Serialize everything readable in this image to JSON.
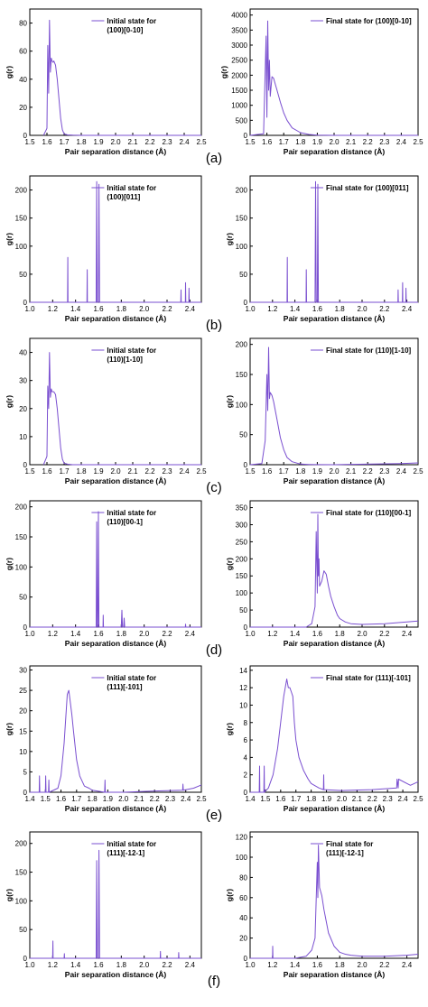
{
  "colors": {
    "series": "#7a4fd0",
    "axis": "#000000",
    "background": "#ffffff"
  },
  "panel_labels": [
    "(a)",
    "(b)",
    "(c)",
    "(d)",
    "(e)",
    "(f)"
  ],
  "chart_data": [
    {
      "panel": "(a)",
      "side": "left",
      "type": "line",
      "legend": "Initial state for (100)[0-10]",
      "xlabel": "Pair separation distance (Å)",
      "ylabel": "g(r)",
      "xlim": [
        1.5,
        2.5
      ],
      "ylim": [
        0,
        90
      ],
      "xticks": [
        "1.5",
        "1.6",
        "1.7",
        "1.8",
        "1.9",
        "2.0",
        "2.1",
        "2.2",
        "2.3",
        "2.4",
        "2.5"
      ],
      "yticks": [
        "0",
        "20",
        "40",
        "60",
        "80"
      ],
      "x": [
        1.58,
        1.6,
        1.605,
        1.61,
        1.615,
        1.62,
        1.625,
        1.63,
        1.635,
        1.64,
        1.65,
        1.66,
        1.67,
        1.68,
        1.69,
        1.7,
        1.72,
        1.75,
        1.8,
        2.0,
        2.3,
        2.5
      ],
      "y": [
        0,
        5,
        64,
        30,
        82,
        45,
        55,
        53,
        52,
        53,
        50,
        40,
        26,
        12,
        4,
        1,
        0.3,
        0.1,
        0,
        0,
        0,
        0
      ]
    },
    {
      "panel": "(a)",
      "side": "right",
      "type": "line",
      "legend": "Final state for (100)[0-10]",
      "xlabel": "Pair separation distance (Å)",
      "ylabel": "g(r)",
      "xlim": [
        1.5,
        2.5
      ],
      "ylim": [
        0,
        4200
      ],
      "xticks": [
        "1.5",
        "1.6",
        "1.7",
        "1.8",
        "1.9",
        "2.0",
        "2.1",
        "2.2",
        "2.3",
        "2.4",
        "2.5"
      ],
      "yticks": [
        "0",
        "500",
        "1000",
        "1500",
        "2000",
        "2500",
        "3000",
        "3500",
        "4000"
      ],
      "x": [
        1.5,
        1.58,
        1.595,
        1.6,
        1.605,
        1.61,
        1.615,
        1.62,
        1.63,
        1.64,
        1.66,
        1.68,
        1.7,
        1.72,
        1.75,
        1.8,
        1.85,
        1.9,
        2.0,
        2.5
      ],
      "y": [
        0,
        50,
        3300,
        600,
        3800,
        1500,
        2500,
        1300,
        1950,
        1900,
        1500,
        1100,
        750,
        500,
        250,
        90,
        30,
        10,
        0,
        0
      ]
    },
    {
      "panel": "(b)",
      "side": "left",
      "type": "line",
      "legend": "Initial state for (100)[011]",
      "xlabel": "Pair separation distance (Å)",
      "ylabel": "g(r)",
      "xlim": [
        1.0,
        2.5
      ],
      "ylim": [
        0,
        225
      ],
      "xticks": [
        "1.0",
        "1.2",
        "1.4",
        "1.6",
        "1.8",
        "2.0",
        "2.2",
        "2.4"
      ],
      "yticks": [
        "0",
        "50",
        "100",
        "150",
        "200"
      ],
      "x": [
        1.0,
        1.33,
        1.332,
        1.334,
        1.5,
        1.502,
        1.504,
        1.58,
        1.585,
        1.59,
        1.6,
        1.605,
        1.61,
        2.32,
        2.322,
        2.324,
        2.36,
        2.362,
        2.364,
        2.39,
        2.392,
        2.394,
        2.5
      ],
      "y": [
        0,
        0,
        80,
        0,
        0,
        58,
        0,
        0,
        215,
        0,
        0,
        210,
        0,
        0,
        22,
        0,
        0,
        35,
        0,
        0,
        25,
        0,
        0
      ]
    },
    {
      "panel": "(b)",
      "side": "right",
      "type": "line",
      "legend": "Final state for (100)[011]",
      "xlabel": "Pair separation distance (Å)",
      "ylabel": "g(r)",
      "xlim": [
        1.0,
        2.5
      ],
      "ylim": [
        0,
        225
      ],
      "xticks": [
        "1.0",
        "1.2",
        "1.4",
        "1.6",
        "1.8",
        "2.0",
        "2.2",
        "2.4"
      ],
      "yticks": [
        "0",
        "50",
        "100",
        "150",
        "200"
      ],
      "x": [
        1.0,
        1.33,
        1.332,
        1.334,
        1.5,
        1.502,
        1.504,
        1.58,
        1.585,
        1.59,
        1.6,
        1.605,
        1.61,
        2.32,
        2.322,
        2.324,
        2.36,
        2.362,
        2.364,
        2.39,
        2.392,
        2.394,
        2.5
      ],
      "y": [
        0,
        0,
        80,
        0,
        0,
        58,
        0,
        0,
        215,
        0,
        0,
        210,
        0,
        0,
        22,
        0,
        0,
        35,
        0,
        0,
        25,
        0,
        0
      ]
    },
    {
      "panel": "(c)",
      "side": "left",
      "type": "line",
      "legend": "Initial state for (110)[1-10]",
      "xlabel": "Pair separation distance (Å)",
      "ylabel": "g(r)",
      "xlim": [
        1.5,
        2.5
      ],
      "ylim": [
        0,
        45
      ],
      "xticks": [
        "1.5",
        "1.6",
        "1.7",
        "1.8",
        "1.9",
        "2.0",
        "2.1",
        "2.2",
        "2.3",
        "2.4",
        "2.5"
      ],
      "yticks": [
        "0",
        "10",
        "20",
        "30",
        "40"
      ],
      "x": [
        1.58,
        1.6,
        1.605,
        1.61,
        1.615,
        1.62,
        1.625,
        1.63,
        1.64,
        1.65,
        1.66,
        1.67,
        1.68,
        1.69,
        1.7,
        1.72,
        1.75,
        2.5
      ],
      "y": [
        0,
        3,
        28,
        20,
        40,
        24,
        27,
        26,
        26,
        25,
        20,
        13,
        6,
        2,
        0.5,
        0.2,
        0,
        0
      ]
    },
    {
      "panel": "(c)",
      "side": "right",
      "type": "line",
      "legend": "Final state for (110)[1-10]",
      "xlabel": "Pair separation distance (Å)",
      "ylabel": "g(r)",
      "xlim": [
        1.5,
        2.5
      ],
      "ylim": [
        0,
        210
      ],
      "xticks": [
        "1.5",
        "1.6",
        "1.7",
        "1.8",
        "1.9",
        "2.0",
        "2.1",
        "2.2",
        "2.3",
        "2.4",
        "2.5"
      ],
      "yticks": [
        "0",
        "50",
        "100",
        "150",
        "200"
      ],
      "x": [
        1.5,
        1.57,
        1.59,
        1.6,
        1.605,
        1.61,
        1.615,
        1.62,
        1.63,
        1.64,
        1.66,
        1.68,
        1.7,
        1.72,
        1.75,
        1.8,
        1.85,
        1.9,
        2.0,
        2.4,
        2.5
      ],
      "y": [
        0,
        2,
        40,
        150,
        90,
        195,
        110,
        120,
        115,
        105,
        75,
        45,
        25,
        12,
        5,
        1,
        0.5,
        0.2,
        0,
        2,
        3
      ]
    },
    {
      "panel": "(d)",
      "side": "left",
      "type": "line",
      "legend": "Initial state for (110)[00-1]",
      "xlabel": "Pair separation distance (Å)",
      "ylabel": "g(r)",
      "xlim": [
        1.0,
        2.5
      ],
      "ylim": [
        0,
        210
      ],
      "xticks": [
        "1.0",
        "1.2",
        "1.4",
        "1.6",
        "1.8",
        "2.0",
        "2.2",
        "2.4"
      ],
      "yticks": [
        "0",
        "50",
        "100",
        "150",
        "200"
      ],
      "x": [
        1.0,
        1.58,
        1.585,
        1.59,
        1.595,
        1.6,
        1.605,
        1.64,
        1.642,
        1.644,
        1.8,
        1.805,
        1.81,
        1.82,
        1.825,
        1.83,
        2.36,
        2.362,
        2.364,
        2.5
      ],
      "y": [
        0,
        0,
        175,
        0,
        0,
        192,
        0,
        0,
        20,
        0,
        0,
        28,
        0,
        0,
        15,
        0,
        0,
        5,
        0,
        0
      ]
    },
    {
      "panel": "(d)",
      "side": "right",
      "type": "line",
      "legend": "Final state for (110)[00-1]",
      "xlabel": "Pair separation distance (Å)",
      "ylabel": "g(r)",
      "xlim": [
        1.0,
        2.5
      ],
      "ylim": [
        0,
        370
      ],
      "xticks": [
        "1.0",
        "1.2",
        "1.4",
        "1.6",
        "1.8",
        "2.0",
        "2.2",
        "2.4"
      ],
      "yticks": [
        "0",
        "50",
        "100",
        "150",
        "200",
        "250",
        "300",
        "350"
      ],
      "x": [
        1.0,
        1.5,
        1.55,
        1.58,
        1.59,
        1.6,
        1.605,
        1.61,
        1.615,
        1.62,
        1.64,
        1.66,
        1.68,
        1.7,
        1.72,
        1.75,
        1.78,
        1.8,
        1.85,
        1.9,
        2.0,
        2.2,
        2.4,
        2.5
      ],
      "y": [
        0,
        0,
        10,
        60,
        280,
        100,
        330,
        150,
        200,
        120,
        135,
        165,
        155,
        120,
        90,
        60,
        35,
        25,
        15,
        10,
        8,
        10,
        15,
        18
      ]
    },
    {
      "panel": "(e)",
      "side": "left",
      "type": "line",
      "legend": "Initial state for (111)[-101]",
      "xlabel": "Pair separation distance (Å)",
      "ylabel": "g(r)",
      "xlim": [
        1.4,
        2.5
      ],
      "ylim": [
        0,
        31
      ],
      "xticks": [
        "1.4",
        "1.5",
        "1.6",
        "1.7",
        "1.8",
        "1.9",
        "2.0",
        "2.1",
        "2.2",
        "2.3",
        "2.4",
        "2.5"
      ],
      "yticks": [
        "0",
        "5",
        "10",
        "15",
        "20",
        "25",
        "30"
      ],
      "x": [
        1.4,
        1.46,
        1.462,
        1.464,
        1.5,
        1.502,
        1.504,
        1.52,
        1.522,
        1.524,
        1.58,
        1.6,
        1.62,
        1.64,
        1.65,
        1.66,
        1.67,
        1.68,
        1.7,
        1.72,
        1.75,
        1.78,
        1.8,
        1.85,
        1.88,
        1.882,
        1.884,
        2.0,
        2.2,
        2.38,
        2.382,
        2.384,
        2.45,
        2.5
      ],
      "y": [
        0,
        0,
        4,
        0,
        0,
        4,
        0,
        0,
        3,
        0,
        1,
        4,
        12,
        24,
        25,
        22,
        19,
        15,
        8,
        4,
        1.5,
        1,
        0.5,
        0.2,
        0,
        3,
        0,
        0,
        0.3,
        0.5,
        2,
        0.5,
        1,
        1.8
      ]
    },
    {
      "panel": "(e)",
      "side": "right",
      "type": "line",
      "legend": "Final state for (111)[-101]",
      "xlabel": "Pair separation distance (Å)",
      "ylabel": "g(r)",
      "xlim": [
        1.4,
        2.5
      ],
      "ylim": [
        0,
        14.5
      ],
      "xticks": [
        "1.4",
        "1.5",
        "1.6",
        "1.7",
        "1.8",
        "1.9",
        "2.0",
        "2.1",
        "2.2",
        "2.3",
        "2.4",
        "2.5"
      ],
      "yticks": [
        "0",
        "2",
        "4",
        "6",
        "8",
        "10",
        "12",
        "14"
      ],
      "x": [
        1.4,
        1.46,
        1.462,
        1.464,
        1.49,
        1.492,
        1.494,
        1.52,
        1.55,
        1.58,
        1.6,
        1.62,
        1.64,
        1.65,
        1.66,
        1.67,
        1.68,
        1.69,
        1.7,
        1.72,
        1.75,
        1.78,
        1.8,
        1.85,
        1.88,
        1.882,
        1.884,
        2.0,
        2.2,
        2.36,
        2.362,
        2.37,
        2.372,
        2.45,
        2.5
      ],
      "y": [
        0,
        0,
        3,
        0,
        0,
        3,
        0,
        0.5,
        2,
        5,
        8,
        11,
        13,
        12,
        12,
        11.5,
        11,
        8,
        6,
        4,
        2.5,
        1.5,
        1,
        0.5,
        0.3,
        2,
        0.3,
        0.2,
        0.3,
        0.5,
        1.5,
        0.5,
        1.5,
        0.8,
        1.2
      ]
    },
    {
      "panel": "(f)",
      "side": "left",
      "type": "line",
      "legend": "Initial state for (111)[-12-1]",
      "xlabel": "Pair separation distance (Å)",
      "ylabel": "g(r)",
      "xlim": [
        1.0,
        2.5
      ],
      "ylim": [
        0,
        220
      ],
      "xticks": [
        "1.0",
        "1.2",
        "1.4",
        "1.6",
        "1.8",
        "2.0",
        "2.2",
        "2.4"
      ],
      "yticks": [
        "0",
        "50",
        "100",
        "150",
        "200"
      ],
      "x": [
        1.0,
        1.2,
        1.202,
        1.204,
        1.3,
        1.302,
        1.304,
        1.58,
        1.585,
        1.59,
        1.6,
        1.605,
        1.61,
        2.14,
        2.142,
        2.144,
        2.3,
        2.302,
        2.304,
        2.5
      ],
      "y": [
        0,
        0,
        30,
        0,
        0,
        8,
        0,
        0,
        170,
        0,
        0,
        188,
        0,
        0,
        12,
        0,
        0,
        10,
        0,
        0
      ]
    },
    {
      "panel": "(f)",
      "side": "right",
      "type": "line",
      "legend": "Final state for (111)[-12-1]",
      "xlabel": "Pair separation distance (Å)",
      "ylabel": "g(r)",
      "xlim": [
        1.0,
        2.5
      ],
      "ylim": [
        0,
        125
      ],
      "xticks": [
        "1.0",
        "1.2",
        "1.4",
        "1.6",
        "1.8",
        "2.0",
        "2.2",
        "2.4"
      ],
      "yticks": [
        "0",
        "20",
        "40",
        "60",
        "80",
        "100",
        "120"
      ],
      "x": [
        1.0,
        1.2,
        1.202,
        1.204,
        1.4,
        1.5,
        1.55,
        1.58,
        1.6,
        1.605,
        1.61,
        1.62,
        1.64,
        1.66,
        1.7,
        1.75,
        1.8,
        1.85,
        1.9,
        2.0,
        2.2,
        2.4,
        2.5
      ],
      "y": [
        0,
        0,
        12,
        0,
        0,
        2,
        8,
        20,
        95,
        60,
        112,
        70,
        62,
        48,
        25,
        12,
        6,
        4,
        3,
        2,
        2,
        3,
        4
      ]
    }
  ]
}
